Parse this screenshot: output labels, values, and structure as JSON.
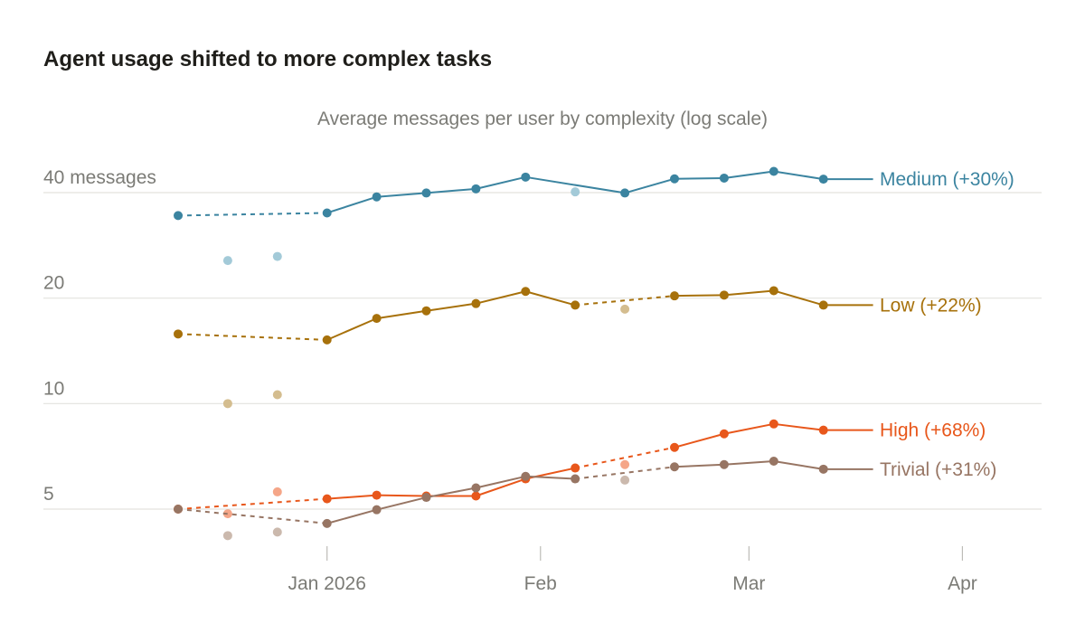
{
  "chart_data": {
    "type": "line",
    "title": "Agent usage shifted to more complex tasks",
    "subtitle": "Average messages per user by complexity (log scale)",
    "yscale": "log",
    "ylim": [
      3.8,
      55
    ],
    "y_ticks": [
      {
        "value": 5,
        "label": "5"
      },
      {
        "value": 10,
        "label": "10"
      },
      {
        "value": 20,
        "label": "20"
      },
      {
        "value": 40,
        "label": "40 messages"
      }
    ],
    "x_ticks": [
      {
        "value": 3,
        "label": "Jan 2026"
      },
      {
        "value": 7.3,
        "label": "Feb"
      },
      {
        "value": 11.5,
        "label": "Mar"
      },
      {
        "value": 15.8,
        "label": "Apr"
      }
    ],
    "x_points": [
      0,
      1,
      2,
      3,
      4,
      5,
      6,
      7,
      8,
      9,
      10,
      11,
      12,
      13,
      14
    ],
    "series": [
      {
        "name": "Medium",
        "label": "Medium (+30%)",
        "color": "#3b84a0",
        "light_color": "#a3cad8",
        "values": [
          34.4,
          25.6,
          26.3,
          35,
          38.9,
          39.9,
          41,
          44.3,
          40.2,
          39.9,
          43.8,
          44,
          46,
          43.7,
          43.7
        ],
        "highlight_indices": [
          1,
          2,
          8
        ]
      },
      {
        "name": "Low",
        "label": "Low (+22%)",
        "color": "#a7710b",
        "light_color": "#d4bd8f",
        "values": [
          15.8,
          10,
          10.6,
          15.2,
          17.5,
          18.4,
          19.3,
          20.9,
          19.1,
          18.6,
          20.3,
          20.4,
          21,
          19.1,
          19.1
        ],
        "highlight_indices": [
          1,
          2,
          9
        ]
      },
      {
        "name": "High",
        "label": "High (+68%)",
        "color": "#e8571b",
        "light_color": "#f5a688",
        "values": [
          5,
          4.85,
          5.6,
          5.35,
          5.48,
          5.45,
          5.45,
          6.1,
          6.55,
          6.7,
          7.5,
          8.2,
          8.75,
          8.4,
          8.4
        ],
        "highlight_indices": [
          1,
          2,
          9
        ]
      },
      {
        "name": "Trivial",
        "label": "Trivial (+31%)",
        "color": "#977563",
        "light_color": "#cbb9ad",
        "values": [
          5,
          4.2,
          4.3,
          4.55,
          4.98,
          5.4,
          5.75,
          6.2,
          6.1,
          6.05,
          6.6,
          6.7,
          6.85,
          6.5,
          6.5
        ],
        "highlight_indices": [
          1,
          2,
          9
        ]
      }
    ],
    "dashed_segments": [
      [
        0,
        3
      ],
      [
        8,
        10
      ]
    ]
  }
}
